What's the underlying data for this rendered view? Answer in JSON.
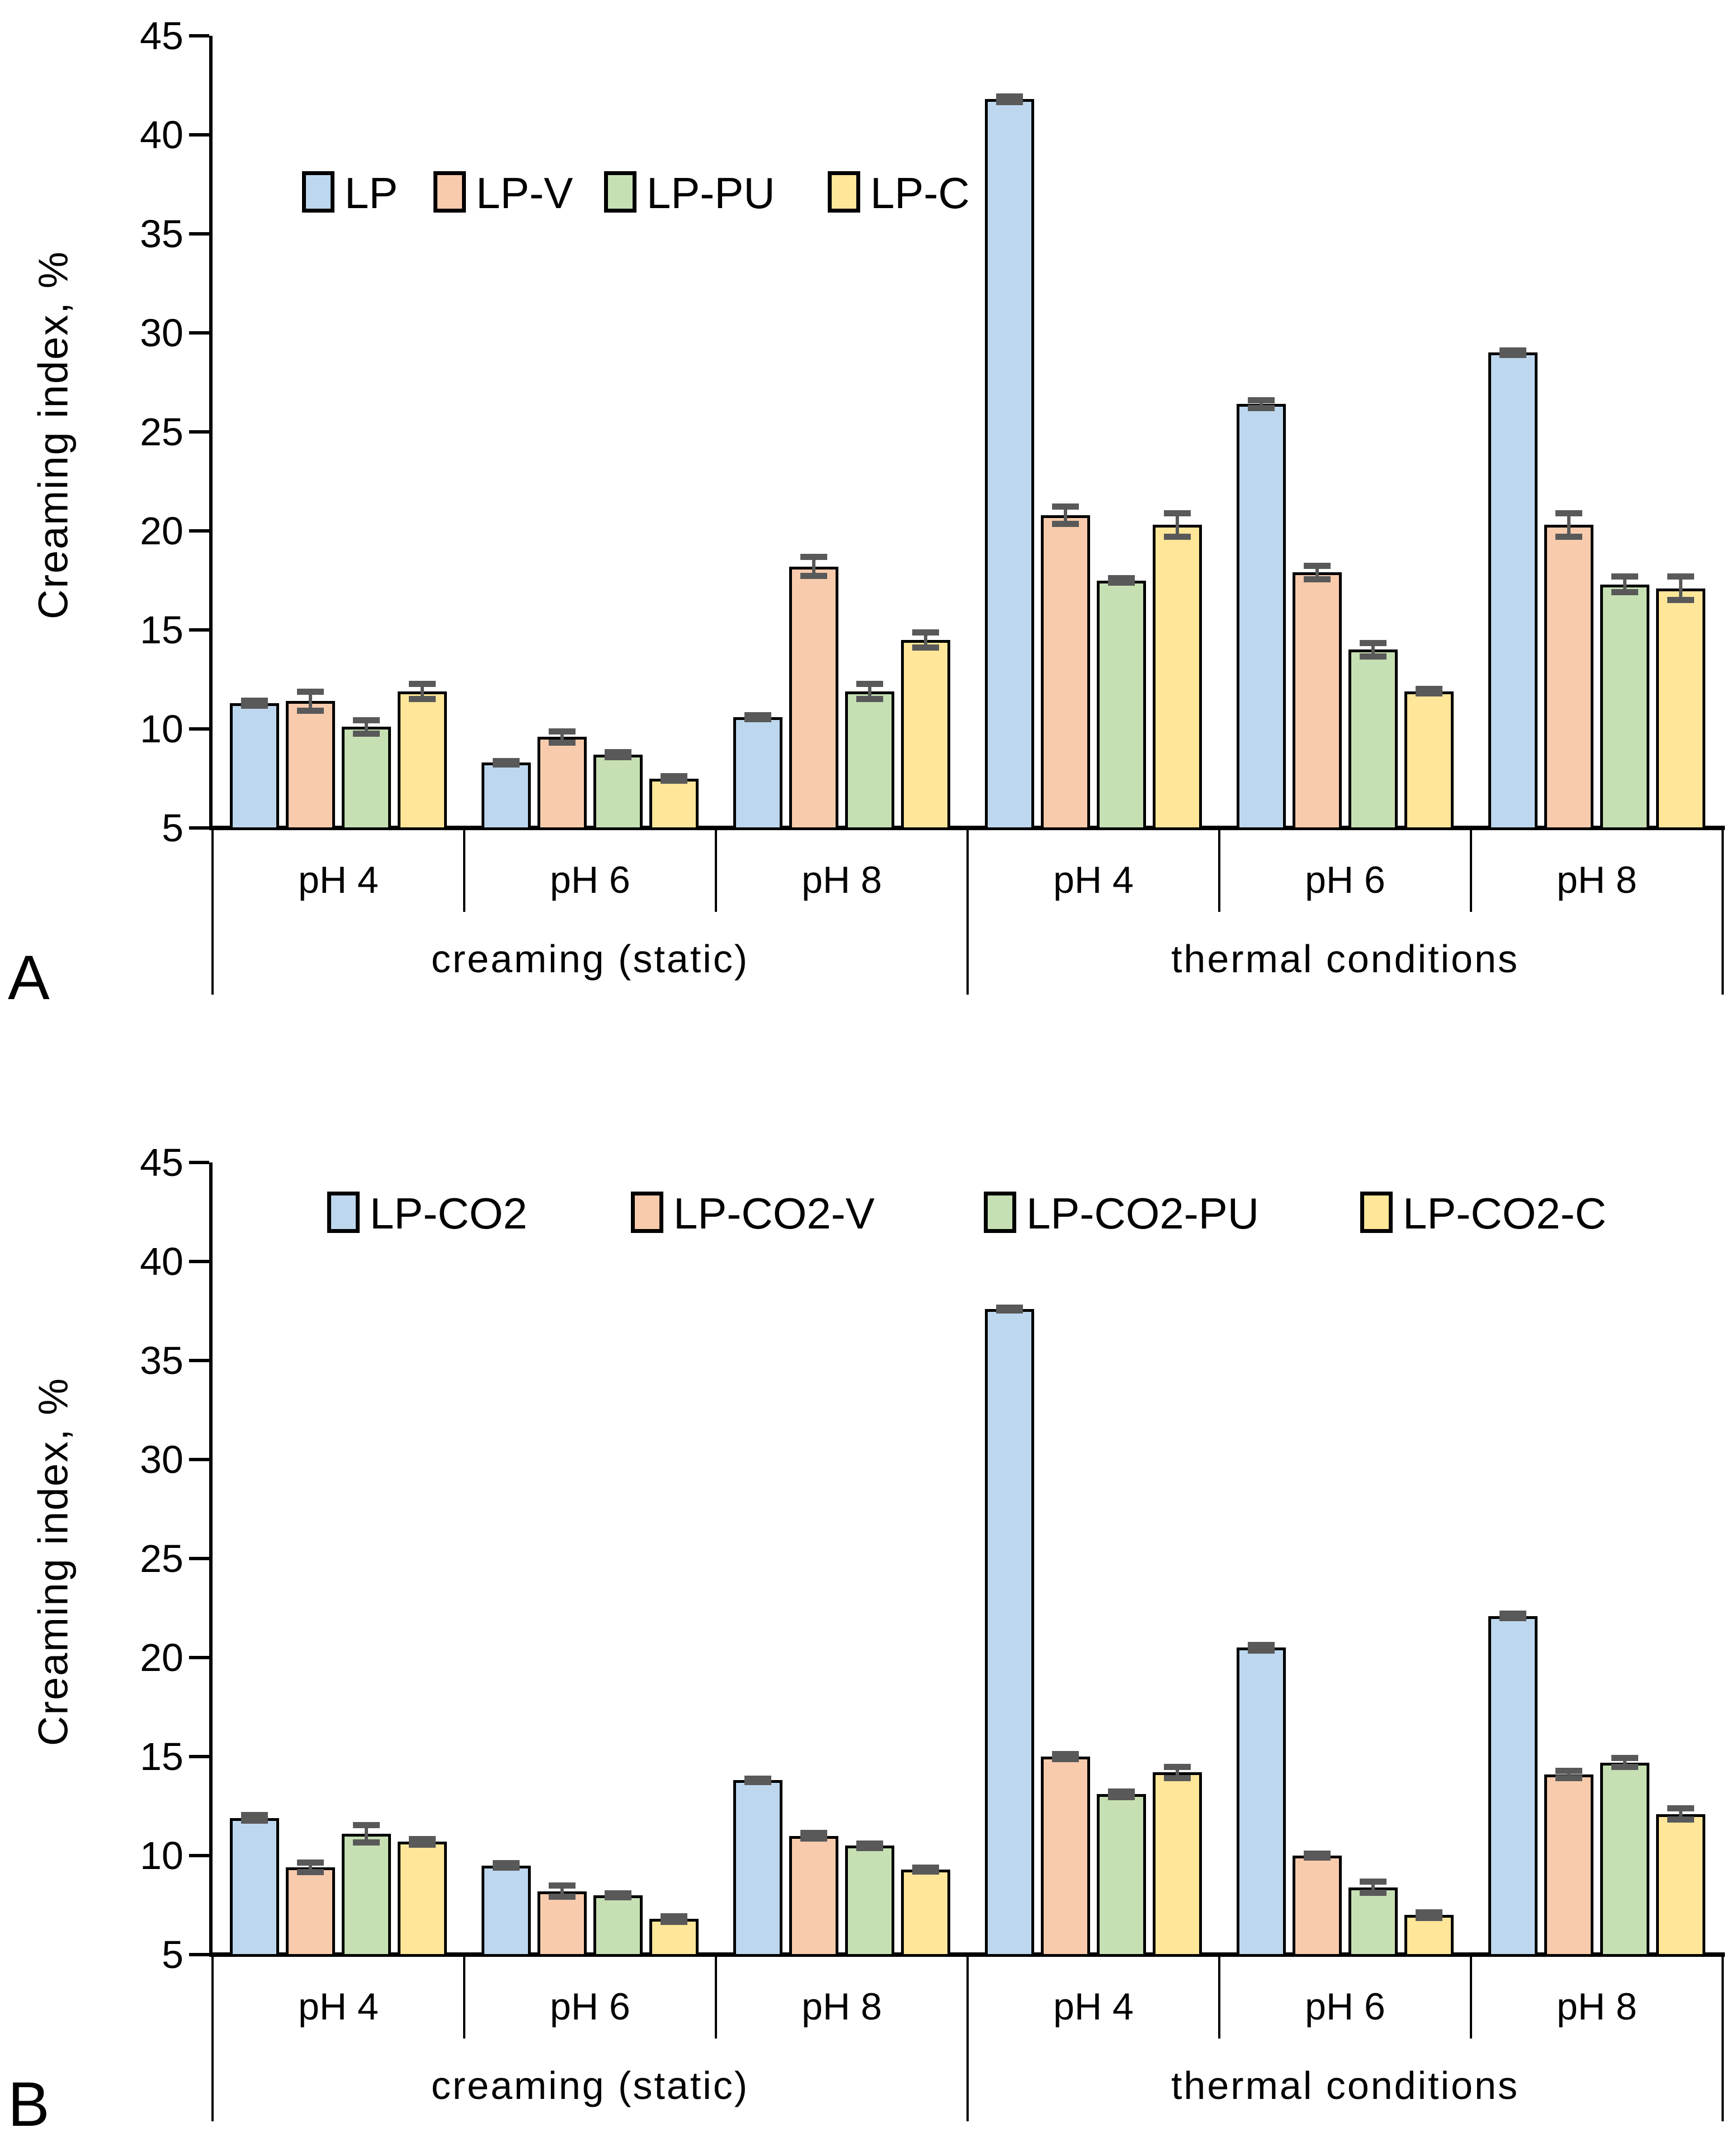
{
  "figure": {
    "panel_a_label": "A",
    "panel_b_label": "B"
  },
  "colors": {
    "series_blue": "#BDD7EE",
    "series_peach": "#F8CBAD",
    "series_green": "#C6E0B4",
    "series_yellow": "#FFE699",
    "bar_border": "#000000",
    "error_bar": "#595959",
    "axis": "#000000"
  },
  "chart_data": [
    {
      "type": "bar",
      "panel": "A",
      "title": "",
      "ylabel": "Creaming index, %",
      "ylim": [
        5,
        45
      ],
      "yticks": [
        "5",
        "10",
        "15",
        "20",
        "25",
        "30",
        "35",
        "40",
        "45"
      ],
      "grid": false,
      "legend_position": "inside-top-left",
      "legend": [
        "LP",
        "LP-V",
        "LP-PU",
        "LP-C"
      ],
      "group_labels": [
        "pH 4",
        "pH 6",
        "pH 8",
        "pH 4",
        "pH 6",
        "pH 8"
      ],
      "section_labels": [
        "creaming (static)",
        "thermal conditions"
      ],
      "series": [
        {
          "name": "LP",
          "color_key": "series_blue",
          "values": [
            11.3,
            8.3,
            10.6,
            41.8,
            26.4,
            29.0
          ],
          "errors": [
            0.15,
            0.1,
            0.12,
            0.15,
            0.2,
            0.12
          ]
        },
        {
          "name": "LP-V",
          "color_key": "series_peach",
          "values": [
            11.4,
            9.6,
            18.2,
            20.8,
            17.9,
            20.3
          ],
          "errors": [
            0.5,
            0.3,
            0.5,
            0.45,
            0.35,
            0.6
          ]
        },
        {
          "name": "LP-PU",
          "color_key": "series_green",
          "values": [
            10.1,
            8.7,
            11.9,
            17.5,
            14.0,
            17.3
          ],
          "errors": [
            0.35,
            0.15,
            0.4,
            0.12,
            0.35,
            0.4
          ]
        },
        {
          "name": "LP-C",
          "color_key": "series_yellow",
          "values": [
            11.9,
            7.5,
            14.5,
            20.3,
            11.9,
            17.1
          ],
          "errors": [
            0.4,
            0.12,
            0.4,
            0.6,
            0.12,
            0.6
          ]
        }
      ]
    },
    {
      "type": "bar",
      "panel": "B",
      "title": "",
      "ylabel": "Creaming index, %",
      "ylim": [
        5,
        45
      ],
      "yticks": [
        "5",
        "10",
        "15",
        "20",
        "25",
        "30",
        "35",
        "40",
        "45"
      ],
      "grid": false,
      "legend_position": "inside-top-spread",
      "legend": [
        "LP-CO2",
        "LP-CO2-V",
        "LP-CO2-PU",
        "LP-CO2-C"
      ],
      "group_labels": [
        "pH 4",
        "pH 6",
        "pH 8",
        "pH 4",
        "pH 6",
        "pH 8"
      ],
      "section_labels": [
        "creaming (static)",
        "thermal conditions"
      ],
      "series": [
        {
          "name": "LP-CO2",
          "color_key": "series_blue",
          "values": [
            11.9,
            9.5,
            13.8,
            37.6,
            20.5,
            22.1
          ],
          "errors": [
            0.15,
            0.12,
            0.1,
            0.08,
            0.15,
            0.12
          ]
        },
        {
          "name": "LP-CO2-V",
          "color_key": "series_peach",
          "values": [
            9.4,
            8.2,
            11.0,
            15.0,
            10.0,
            14.1
          ],
          "errors": [
            0.25,
            0.3,
            0.15,
            0.15,
            0.12,
            0.2
          ]
        },
        {
          "name": "LP-CO2-PU",
          "color_key": "series_green",
          "values": [
            11.1,
            8.0,
            10.5,
            13.1,
            8.4,
            14.7
          ],
          "errors": [
            0.45,
            0.12,
            0.12,
            0.15,
            0.3,
            0.25
          ]
        },
        {
          "name": "LP-CO2-C",
          "color_key": "series_yellow",
          "values": [
            10.7,
            6.8,
            9.3,
            14.2,
            7.0,
            12.1
          ],
          "errors": [
            0.15,
            0.15,
            0.12,
            0.3,
            0.15,
            0.3
          ]
        }
      ]
    }
  ]
}
